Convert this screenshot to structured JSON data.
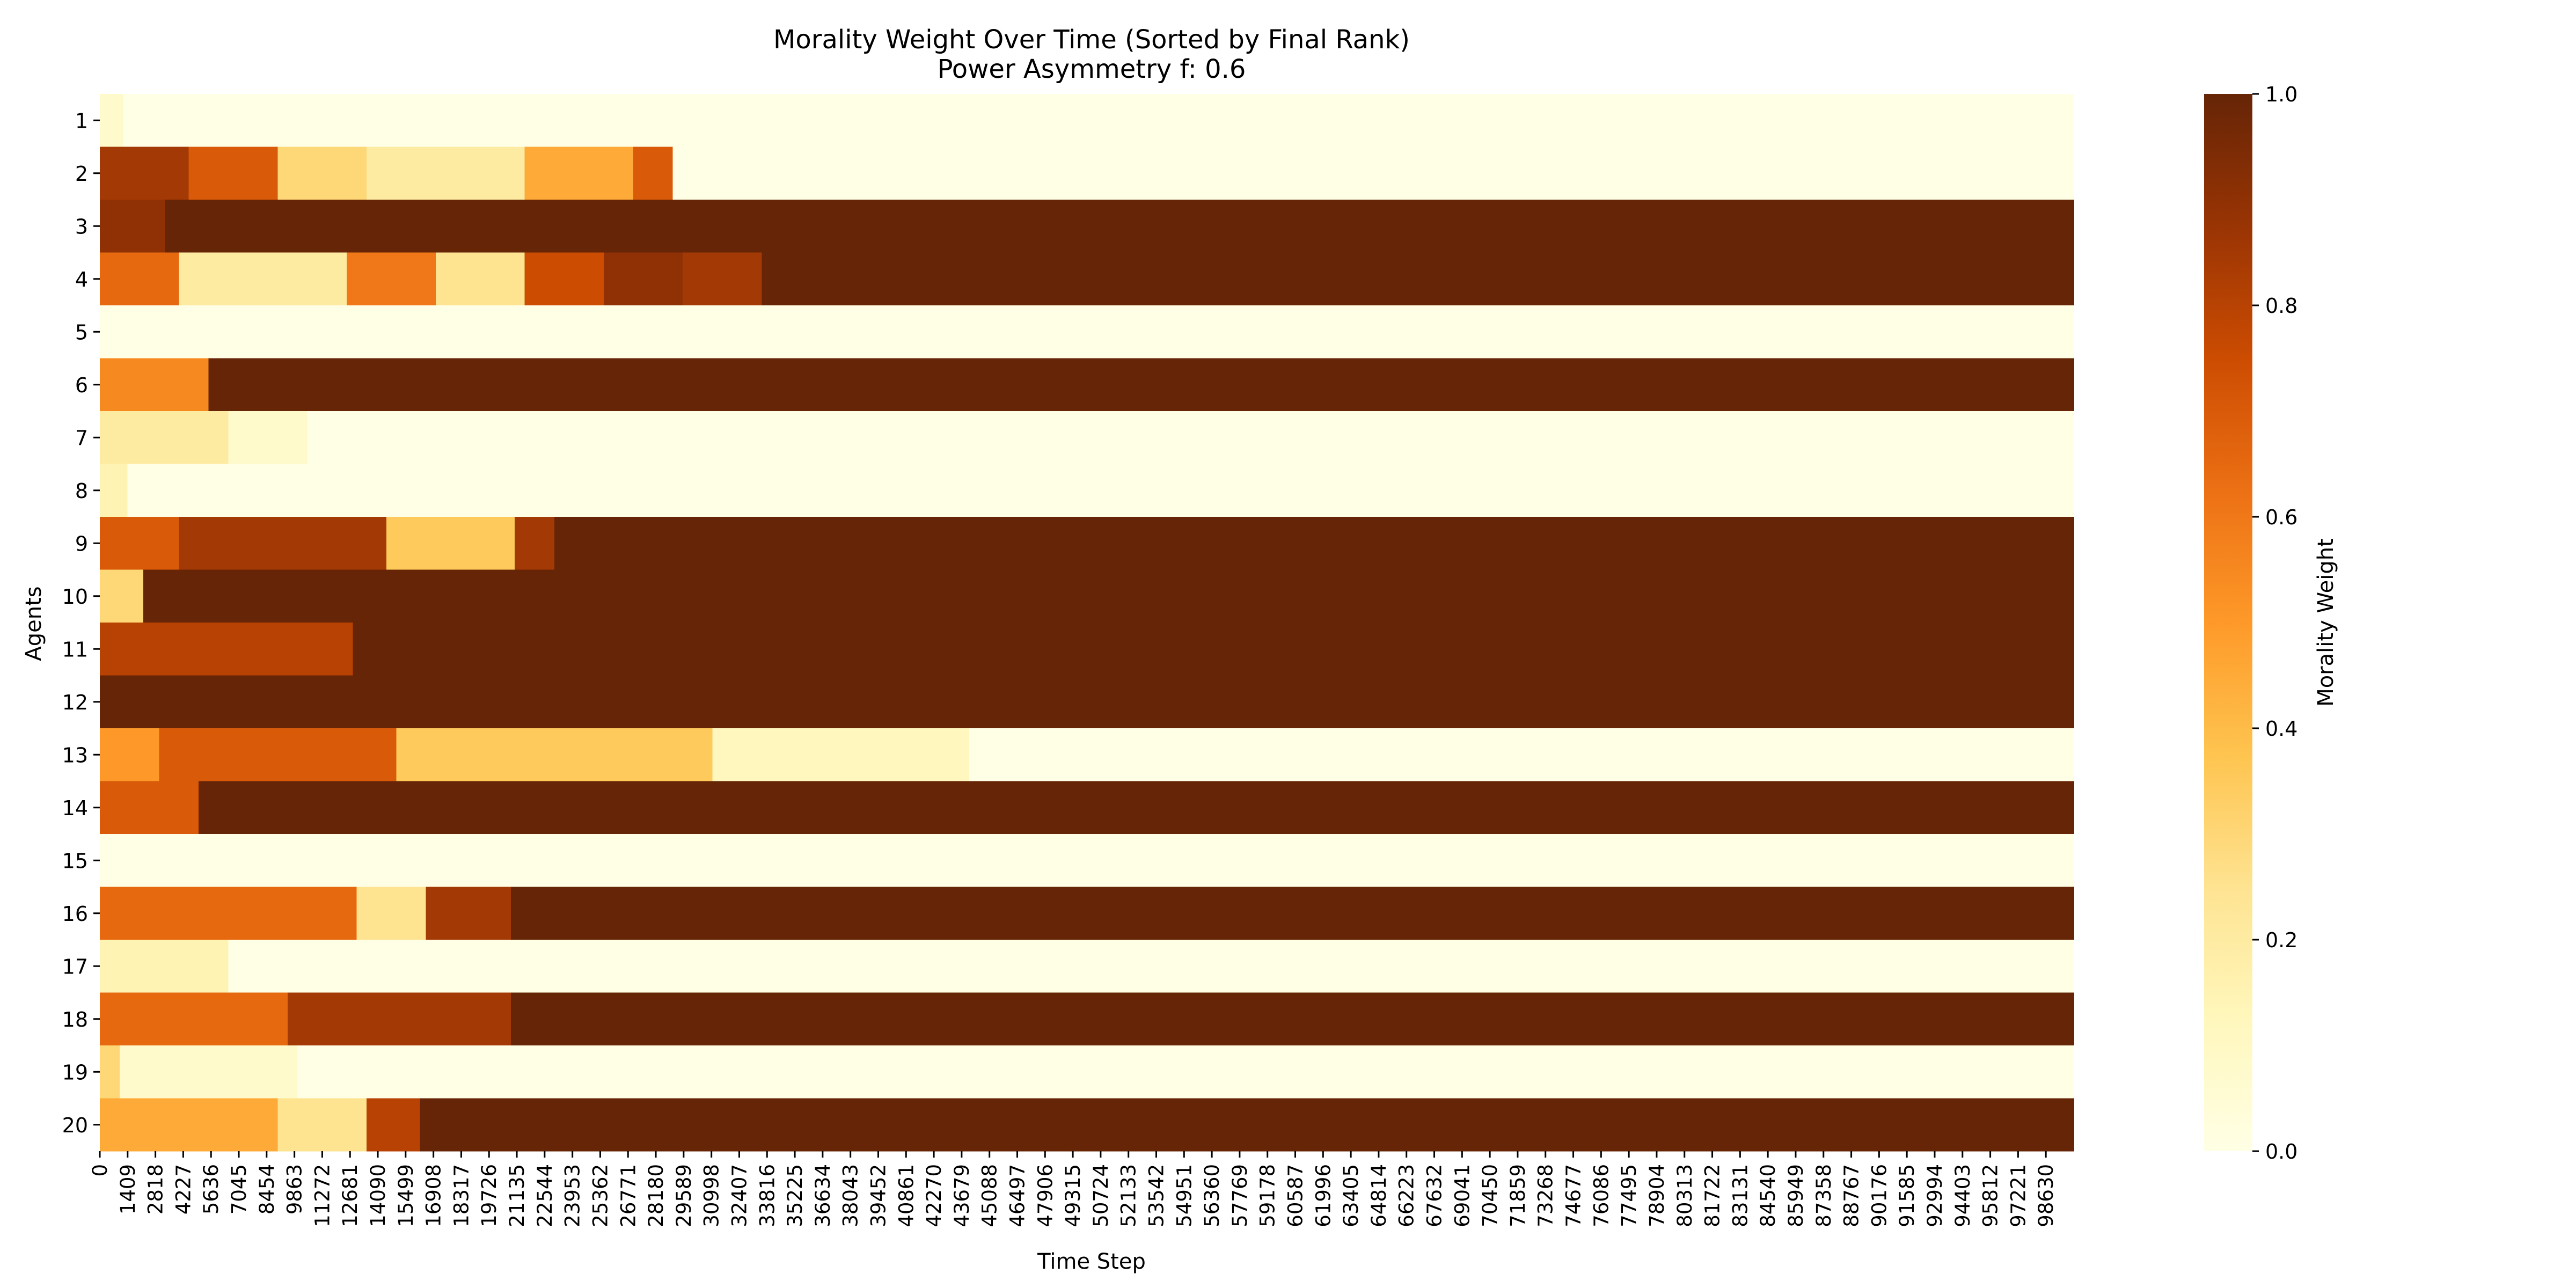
{
  "chart_data": {
    "type": "heatmap",
    "title": "Morality Weight Over Time (Sorted by Final Rank)",
    "subtitle": "Power Asymmetry f: 0.6",
    "xlabel": "Time Step",
    "ylabel": "Agents",
    "colorbar_label": "Morality Weight",
    "colormap": "YlOrBr",
    "colormap_stops": [
      "#ffffe5",
      "#fff7bc",
      "#fee391",
      "#fec44f",
      "#fe9929",
      "#ec7014",
      "#cc4c02",
      "#993404",
      "#662506"
    ],
    "value_range": [
      0,
      1
    ],
    "colorbar_ticks": [
      "0.0",
      "0.2",
      "0.4",
      "0.6",
      "0.8",
      "1.0"
    ],
    "x_range": [
      0,
      99900
    ],
    "x_ticks": [
      "0",
      "1409",
      "2818",
      "4227",
      "5636",
      "7045",
      "8454",
      "9863",
      "11272",
      "12681",
      "14090",
      "15499",
      "16908",
      "18317",
      "19726",
      "21135",
      "22544",
      "23953",
      "25362",
      "26771",
      "28180",
      "29589",
      "30998",
      "32407",
      "33816",
      "35225",
      "36634",
      "38043",
      "39452",
      "40861",
      "42270",
      "43679",
      "45088",
      "46497",
      "47906",
      "49315",
      "50724",
      "52133",
      "53542",
      "54951",
      "56360",
      "57769",
      "59178",
      "60587",
      "61996",
      "63405",
      "64814",
      "66223",
      "67632",
      "69041",
      "70450",
      "71859",
      "73268",
      "74677",
      "76086",
      "77495",
      "78904",
      "80313",
      "81722",
      "83131",
      "84540",
      "85949",
      "87358",
      "88767",
      "90176",
      "91585",
      "92994",
      "94403",
      "95812",
      "97221",
      "98630"
    ],
    "agents": [
      "1",
      "2",
      "3",
      "4",
      "5",
      "6",
      "7",
      "8",
      "9",
      "10",
      "11",
      "12",
      "13",
      "14",
      "15",
      "16",
      "17",
      "18",
      "19",
      "20"
    ],
    "rows": [
      {
        "agent": "1",
        "segments": [
          [
            0,
            1200,
            0.08
          ],
          [
            1200,
            99900,
            0.0
          ]
        ]
      },
      {
        "agent": "2",
        "segments": [
          [
            0,
            4500,
            0.85
          ],
          [
            4500,
            9000,
            0.7
          ],
          [
            9000,
            13500,
            0.3
          ],
          [
            13500,
            21500,
            0.2
          ],
          [
            21500,
            27000,
            0.45
          ],
          [
            27000,
            29000,
            0.7
          ],
          [
            29000,
            99900,
            0.0
          ]
        ]
      },
      {
        "agent": "3",
        "segments": [
          [
            0,
            3300,
            0.9
          ],
          [
            3300,
            99900,
            1.0
          ]
        ]
      },
      {
        "agent": "4",
        "segments": [
          [
            0,
            4000,
            0.65
          ],
          [
            4000,
            12500,
            0.2
          ],
          [
            12500,
            17000,
            0.6
          ],
          [
            17000,
            21500,
            0.25
          ],
          [
            21500,
            25500,
            0.75
          ],
          [
            25500,
            29500,
            0.9
          ],
          [
            29500,
            33500,
            0.85
          ],
          [
            33500,
            99900,
            1.0
          ]
        ]
      },
      {
        "agent": "5",
        "segments": [
          [
            0,
            99900,
            0.0
          ]
        ]
      },
      {
        "agent": "6",
        "segments": [
          [
            0,
            5500,
            0.55
          ],
          [
            5500,
            99900,
            1.0
          ]
        ]
      },
      {
        "agent": "7",
        "segments": [
          [
            0,
            6500,
            0.2
          ],
          [
            6500,
            10500,
            0.08
          ],
          [
            10500,
            99900,
            0.0
          ]
        ]
      },
      {
        "agent": "8",
        "segments": [
          [
            0,
            1400,
            0.15
          ],
          [
            1400,
            99900,
            0.0
          ]
        ]
      },
      {
        "agent": "9",
        "segments": [
          [
            0,
            4000,
            0.7
          ],
          [
            4000,
            14500,
            0.85
          ],
          [
            14500,
            21000,
            0.35
          ],
          [
            21000,
            23000,
            0.85
          ],
          [
            23000,
            99900,
            1.0
          ]
        ]
      },
      {
        "agent": "10",
        "segments": [
          [
            0,
            2200,
            0.3
          ],
          [
            2200,
            99900,
            1.0
          ]
        ]
      },
      {
        "agent": "11",
        "segments": [
          [
            0,
            12800,
            0.8
          ],
          [
            12800,
            99900,
            1.0
          ]
        ]
      },
      {
        "agent": "12",
        "segments": [
          [
            0,
            99900,
            1.0
          ]
        ]
      },
      {
        "agent": "13",
        "segments": [
          [
            0,
            3000,
            0.5
          ],
          [
            3000,
            15000,
            0.7
          ],
          [
            15000,
            31000,
            0.35
          ],
          [
            31000,
            44000,
            0.12
          ],
          [
            44000,
            99900,
            0.0
          ]
        ]
      },
      {
        "agent": "14",
        "segments": [
          [
            0,
            5000,
            0.7
          ],
          [
            5000,
            99900,
            1.0
          ]
        ]
      },
      {
        "agent": "15",
        "segments": [
          [
            0,
            99900,
            0.0
          ]
        ]
      },
      {
        "agent": "16",
        "segments": [
          [
            0,
            13000,
            0.65
          ],
          [
            13000,
            16500,
            0.25
          ],
          [
            16500,
            20800,
            0.85
          ],
          [
            20800,
            99900,
            1.0
          ]
        ]
      },
      {
        "agent": "17",
        "segments": [
          [
            0,
            6500,
            0.15
          ],
          [
            6500,
            99900,
            0.0
          ]
        ]
      },
      {
        "agent": "18",
        "segments": [
          [
            0,
            9500,
            0.65
          ],
          [
            9500,
            20800,
            0.85
          ],
          [
            20800,
            99900,
            1.0
          ]
        ]
      },
      {
        "agent": "19",
        "segments": [
          [
            0,
            1000,
            0.3
          ],
          [
            1000,
            10000,
            0.08
          ],
          [
            10000,
            99900,
            0.0
          ]
        ]
      },
      {
        "agent": "20",
        "segments": [
          [
            0,
            9000,
            0.45
          ],
          [
            9000,
            13500,
            0.25
          ],
          [
            13500,
            16200,
            0.8
          ],
          [
            16200,
            99900,
            1.0
          ]
        ]
      }
    ]
  }
}
